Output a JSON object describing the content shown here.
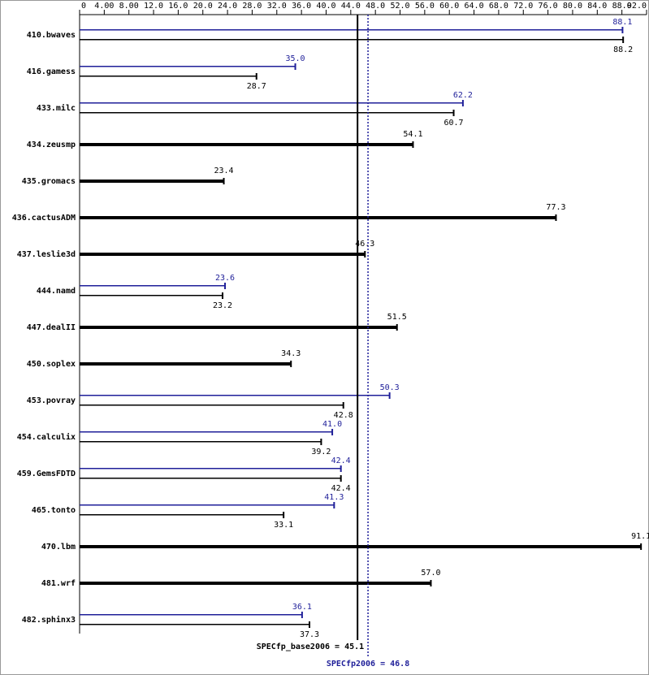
{
  "chart_data": {
    "type": "bar",
    "categories": [
      "410.bwaves",
      "416.gamess",
      "433.milc",
      "434.zeusmp",
      "435.gromacs",
      "436.cactusADM",
      "437.leslie3d",
      "444.namd",
      "447.dealII",
      "450.soplex",
      "453.povray",
      "454.calculix",
      "459.GemsFDTD",
      "465.tonto",
      "470.lbm",
      "481.wrf",
      "482.sphinx3"
    ],
    "base": [
      88.2,
      28.7,
      60.7,
      54.1,
      23.4,
      77.3,
      46.3,
      23.2,
      51.5,
      34.3,
      42.8,
      39.2,
      42.4,
      33.1,
      91.1,
      57.0,
      37.3
    ],
    "base_value_labels": [
      "88.2",
      "28.7",
      "60.7",
      "54.1",
      "23.4",
      "77.3",
      "46.3",
      "23.2",
      "51.5",
      "34.3",
      "42.8",
      "39.2",
      "42.4",
      "33.1",
      "91.1",
      "57.0",
      "37.3"
    ],
    "peak": [
      88.1,
      35.0,
      62.2,
      null,
      null,
      null,
      null,
      23.6,
      null,
      null,
      50.3,
      41.0,
      42.4,
      41.3,
      null,
      null,
      36.1
    ],
    "peak_value_labels": [
      "88.1",
      "35.0",
      "62.2",
      null,
      null,
      null,
      null,
      "23.6",
      null,
      null,
      "50.3",
      "41.0",
      "42.4",
      "41.3",
      null,
      null,
      "36.1"
    ],
    "base_color": "#000000",
    "peak_color": "#1f1f99",
    "xlim": [
      0,
      92
    ],
    "xticks": [
      0,
      {
        "value": 4,
        "label": "4.00"
      },
      {
        "value": 8,
        "label": "8.00"
      },
      {
        "value": 12,
        "label": "12.0"
      },
      {
        "value": 16,
        "label": "16.0"
      },
      {
        "value": 20,
        "label": "20.0"
      },
      {
        "value": 24,
        "label": "24.0"
      },
      {
        "value": 28,
        "label": "28.0"
      },
      {
        "value": 32,
        "label": "32.0"
      },
      {
        "value": 36,
        "label": "36.0"
      },
      {
        "value": 40,
        "label": "40.0"
      },
      {
        "value": 44,
        "label": "44.0"
      },
      {
        "value": 48,
        "label": "48.0"
      },
      {
        "value": 52,
        "label": "52.0"
      },
      {
        "value": 56,
        "label": "56.0"
      },
      {
        "value": 60,
        "label": "60.0"
      },
      {
        "value": 64,
        "label": "64.0"
      },
      {
        "value": 68,
        "label": "68.0"
      },
      {
        "value": 72,
        "label": "72.0"
      },
      {
        "value": 76,
        "label": "76.0"
      },
      {
        "value": 80,
        "label": "80.0"
      },
      {
        "value": 84,
        "label": "84.0"
      },
      {
        "value": 88,
        "label": "88.0"
      },
      {
        "value": 92,
        "label": "92.0"
      }
    ],
    "base_mean": 45.1,
    "base_mean_label": "SPECfp_base2006 = 45.1",
    "peak_mean": 46.8,
    "peak_mean_label": "SPECfp2006 = 46.8"
  }
}
